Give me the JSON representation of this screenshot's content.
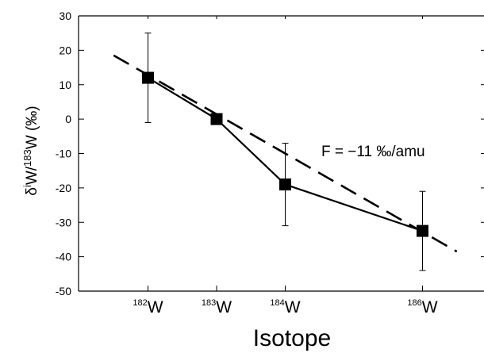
{
  "chart_data": {
    "type": "scatter",
    "title": "",
    "xlabel": "Isotope",
    "ylabel": {
      "prefix": "δ",
      "sup1": "i",
      "mid": "W/",
      "sup2": "183",
      "suffix": "W (‰)"
    },
    "ylim": [
      -50,
      30
    ],
    "y_ticks": [
      "30",
      "20",
      "10",
      "0",
      "-10",
      "-20",
      "-30",
      "-40",
      "-50"
    ],
    "x_ticks": [
      {
        "mass": 182,
        "sup": "182",
        "label": "W"
      },
      {
        "mass": 183,
        "sup": "183",
        "label": "W"
      },
      {
        "mass": 184,
        "sup": "184",
        "label": "W"
      },
      {
        "mass": 186,
        "sup": "186",
        "label": "W"
      }
    ],
    "series": [
      {
        "x": [
          182,
          183,
          184,
          186
        ],
        "y": [
          12,
          0,
          -19,
          -32.5
        ],
        "err": [
          13,
          0,
          12,
          11.5
        ],
        "marker": "square",
        "line": "solid"
      },
      {
        "x": [
          181.5,
          186.5
        ],
        "y": [
          18.5,
          -38.5
        ],
        "line": "dashed"
      }
    ],
    "annotation": "F = −11 ‰/amu",
    "grid": false
  }
}
